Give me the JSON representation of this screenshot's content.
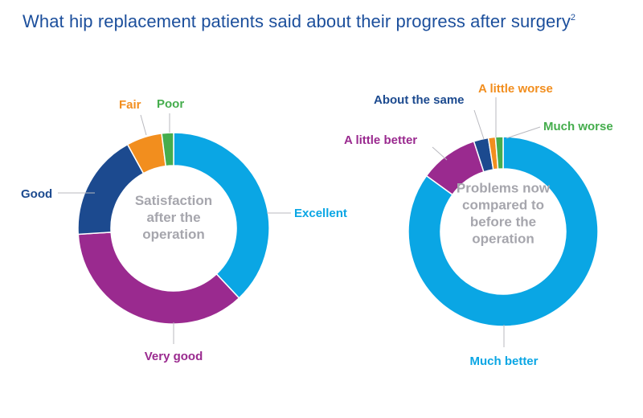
{
  "title": "What hip replacement patients said about their progress after surgery",
  "title_superscript": "2",
  "colors": {
    "title": "#1c4f9c",
    "leader": "#b9b9bf",
    "center_text": "#a6a6ad"
  },
  "chart_data": [
    {
      "type": "pie",
      "style": "donut",
      "center_label": [
        "Satisfaction",
        "after the",
        "operation"
      ],
      "categories": [
        "Excellent",
        "Very good",
        "Good",
        "Fair",
        "Poor"
      ],
      "values": [
        38,
        36,
        18,
        6,
        2
      ],
      "colors": [
        "#0aa6e4",
        "#9a2a8f",
        "#1c4a8f",
        "#f28e1e",
        "#45ad4d"
      ]
    },
    {
      "type": "pie",
      "style": "donut",
      "center_label": [
        "Problems now",
        "compared to",
        "before the",
        "operation"
      ],
      "categories": [
        "Much better",
        "A little better",
        "About the same",
        "A little worse",
        "Much worse"
      ],
      "values": [
        85,
        10,
        2.5,
        1.2,
        1.3
      ],
      "colors": [
        "#0aa6e4",
        "#9a2a8f",
        "#1c4a8f",
        "#f28e1e",
        "#45ad4d"
      ]
    }
  ]
}
